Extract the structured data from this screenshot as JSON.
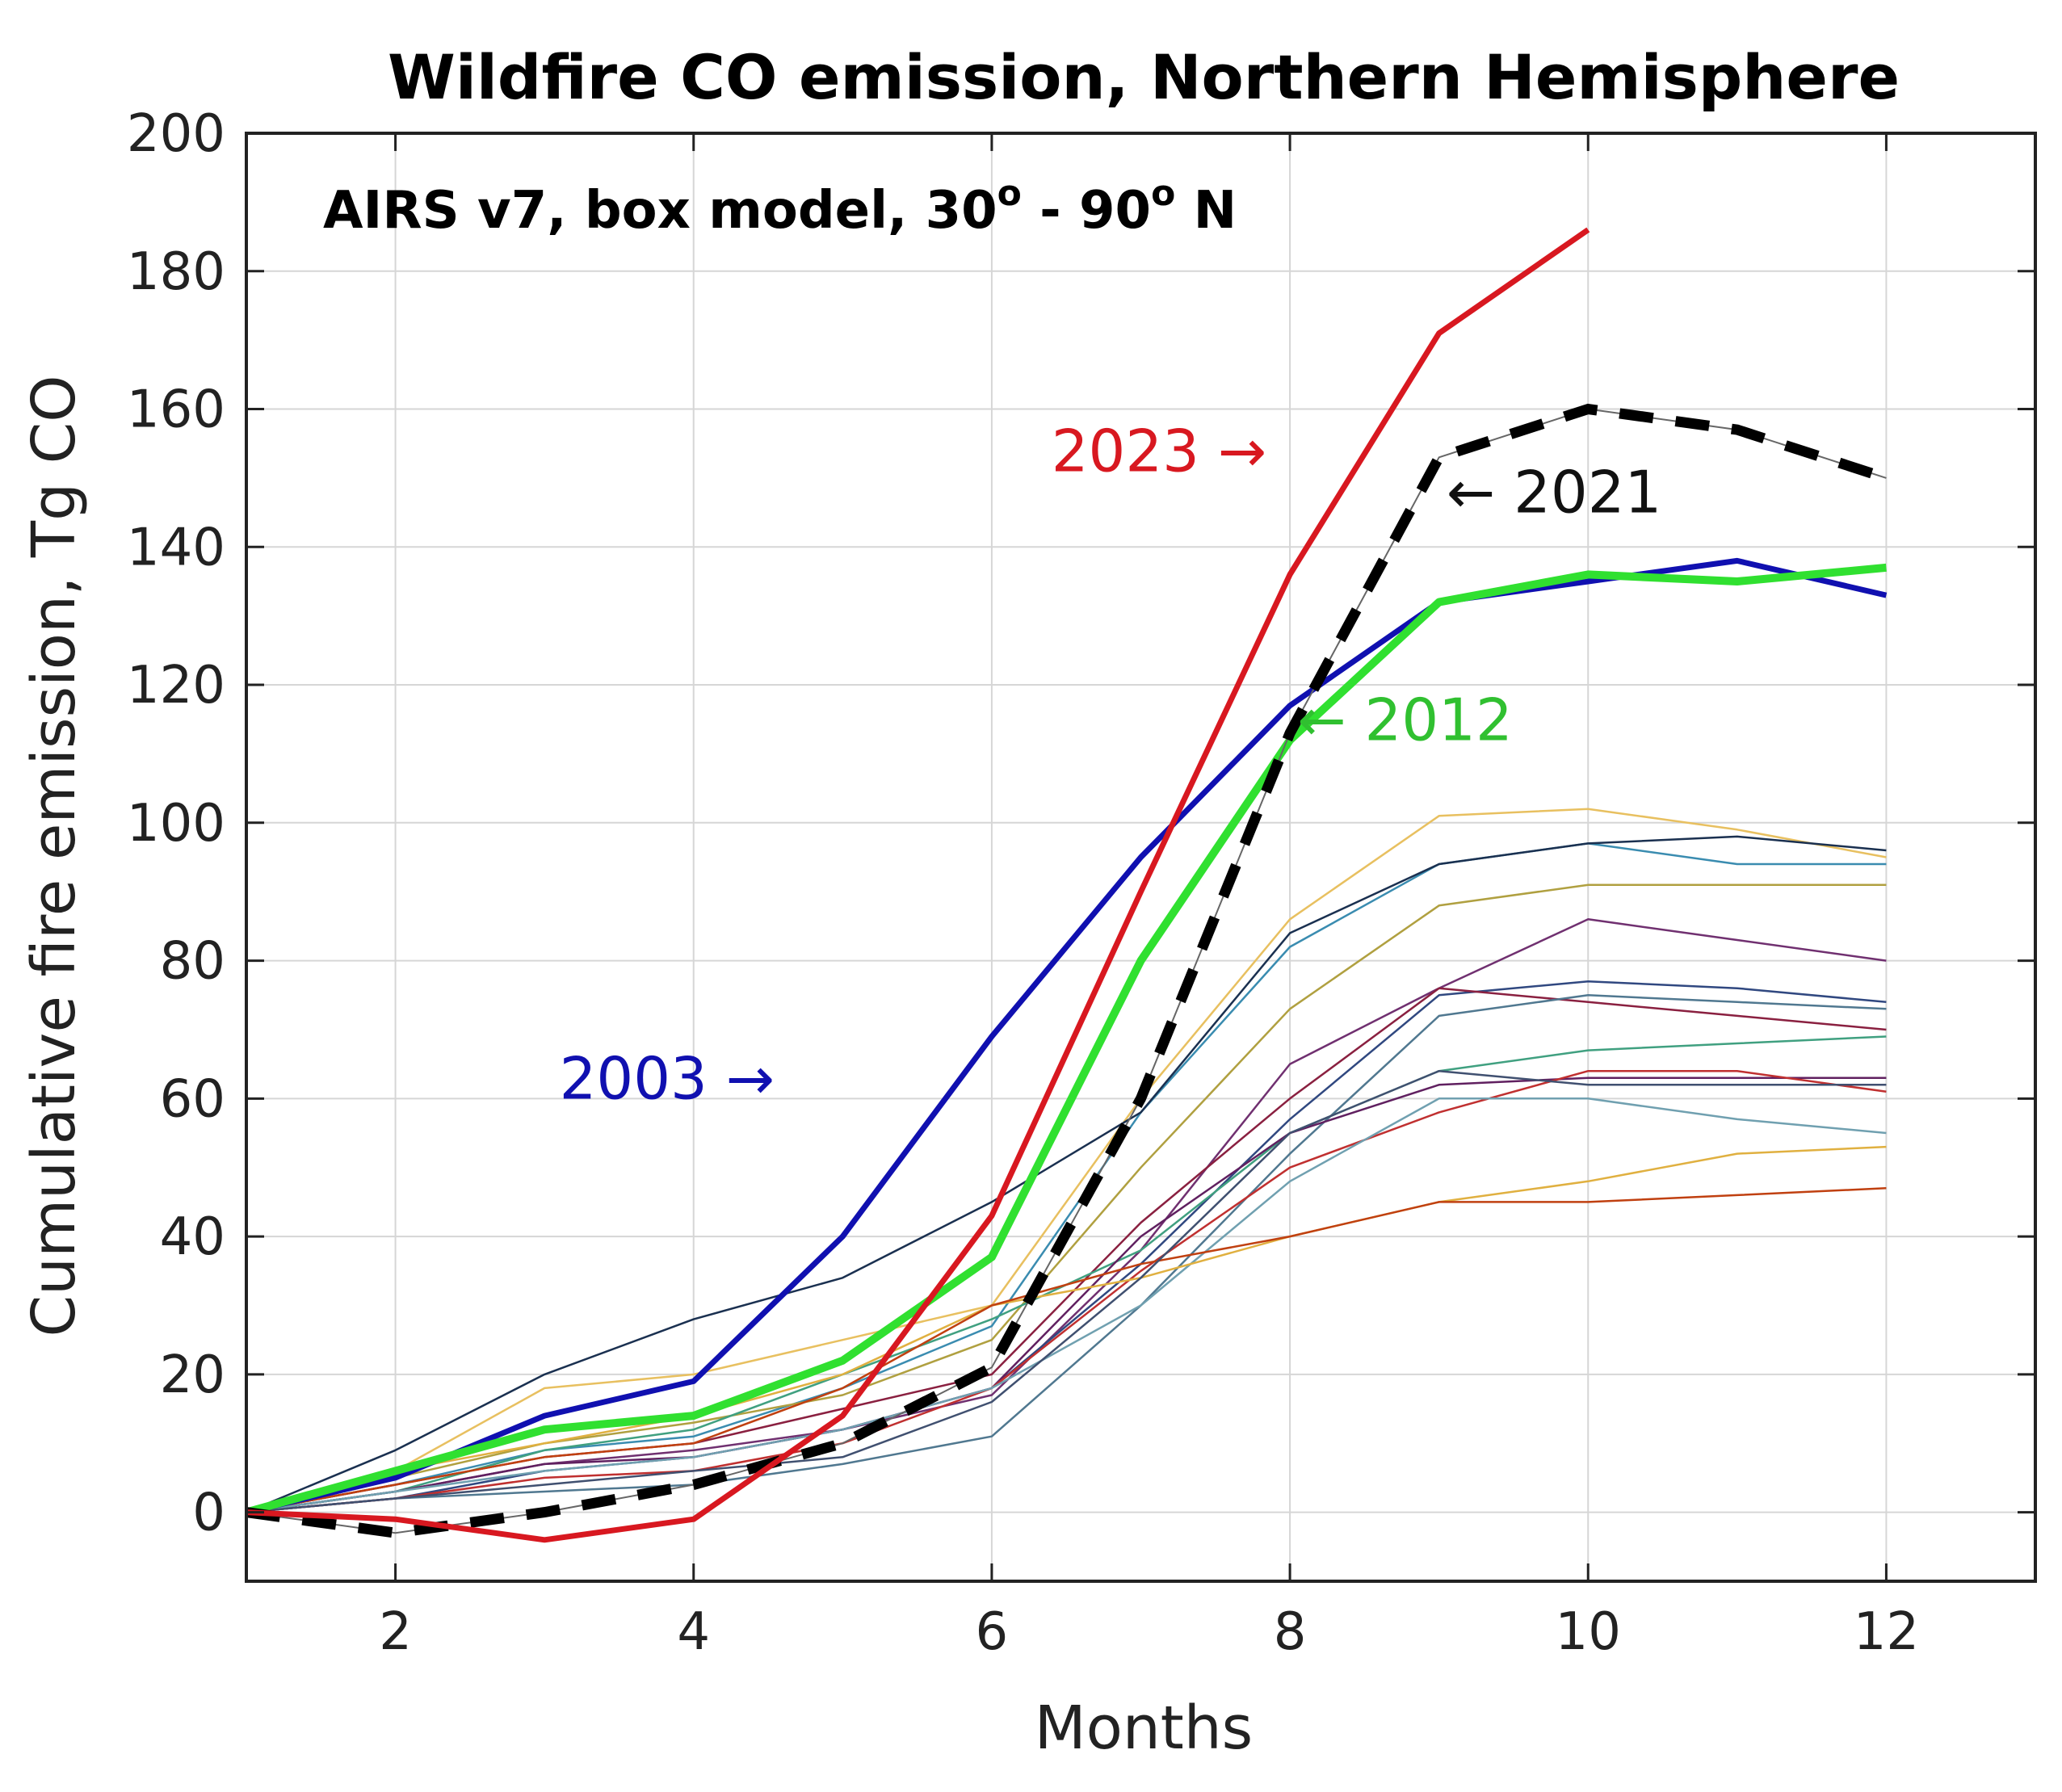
{
  "chart_data": {
    "type": "line",
    "title": "Wildfire CO emission, Northern Hemisphere",
    "subtitle": "AIRS v7, box model, 30",
    "subtitle_sup": "o",
    "subtitle_mid": " - 90",
    "subtitle_end": " N",
    "xlabel": "Months",
    "ylabel": "Cumulative fire emission, Tg CO",
    "xlim": [
      1,
      13
    ],
    "ylim": [
      -10,
      200
    ],
    "xticks": [
      2,
      4,
      6,
      8,
      10,
      12
    ],
    "yticks": [
      0,
      20,
      40,
      60,
      80,
      100,
      120,
      140,
      160,
      180,
      200
    ],
    "grid": true,
    "x": [
      1,
      2,
      3,
      4,
      5,
      6,
      7,
      8,
      9,
      10,
      11,
      12
    ],
    "highlighted_series": [
      {
        "name": "2003",
        "color": "#1010b0",
        "style": "solid",
        "values": [
          0,
          5,
          14,
          19,
          40,
          69,
          95,
          117,
          132,
          135,
          138,
          133
        ]
      },
      {
        "name": "2012",
        "color": "#30e030",
        "style": "solid",
        "values": [
          0,
          6,
          12,
          14,
          22,
          37,
          80,
          112,
          132,
          136,
          135,
          137
        ]
      },
      {
        "name": "2021",
        "color": "#000000",
        "style": "dashed",
        "values": [
          0,
          -3,
          0,
          4,
          10,
          21,
          60,
          113,
          153,
          160,
          157,
          150
        ]
      },
      {
        "name": "2023",
        "color": "#d81820",
        "style": "solid",
        "values": [
          0,
          -1,
          -4,
          -1,
          14,
          43,
          90,
          136,
          171,
          186,
          null,
          null
        ]
      }
    ],
    "background_series": [
      {
        "color": "#e8c060",
        "values": [
          0,
          6,
          18,
          20,
          25,
          30,
          60,
          86,
          101,
          102,
          99,
          95
        ]
      },
      {
        "color": "#3a8cb0",
        "values": [
          0,
          4,
          9,
          11,
          18,
          27,
          58,
          82,
          94,
          97,
          94,
          94
        ]
      },
      {
        "color": "#b0a040",
        "values": [
          0,
          5,
          10,
          13,
          17,
          25,
          50,
          73,
          88,
          91,
          91,
          91
        ]
      },
      {
        "color": "#703070",
        "values": [
          0,
          3,
          7,
          9,
          12,
          17,
          38,
          65,
          76,
          86,
          83,
          80
        ]
      },
      {
        "color": "#304880",
        "values": [
          0,
          2,
          6,
          8,
          12,
          18,
          36,
          57,
          75,
          77,
          76,
          74
        ]
      },
      {
        "color": "#8a2040",
        "values": [
          0,
          4,
          8,
          10,
          15,
          20,
          42,
          60,
          76,
          74,
          72,
          70
        ]
      },
      {
        "color": "#507890",
        "values": [
          0,
          2,
          3,
          4,
          7,
          11,
          30,
          52,
          72,
          75,
          74,
          73
        ]
      },
      {
        "color": "#40a080",
        "values": [
          0,
          3,
          9,
          12,
          20,
          28,
          38,
          55,
          64,
          67,
          68,
          69
        ]
      },
      {
        "color": "#602060",
        "values": [
          0,
          3,
          7,
          8,
          12,
          18,
          40,
          55,
          62,
          63,
          63,
          63
        ]
      },
      {
        "color": "#c03030",
        "values": [
          0,
          2,
          5,
          6,
          10,
          18,
          35,
          50,
          58,
          64,
          64,
          61
        ]
      },
      {
        "color": "#70a0b0",
        "values": [
          0,
          3,
          6,
          8,
          12,
          18,
          30,
          48,
          60,
          60,
          57,
          55
        ]
      },
      {
        "color": "#e0b040",
        "values": [
          0,
          6,
          10,
          14,
          20,
          30,
          34,
          40,
          45,
          48,
          52,
          53
        ]
      },
      {
        "color": "#c04010",
        "values": [
          0,
          4,
          8,
          10,
          18,
          30,
          36,
          40,
          45,
          45,
          46,
          47
        ]
      },
      {
        "color": "#1a3050",
        "values": [
          0,
          9,
          20,
          28,
          34,
          45,
          58,
          84,
          94,
          97,
          98,
          96
        ]
      },
      {
        "color": "#405070",
        "values": [
          0,
          2,
          4,
          6,
          8,
          16,
          34,
          55,
          64,
          62,
          62,
          62
        ]
      }
    ],
    "annotations": [
      {
        "series": "2023",
        "text": "2023 →",
        "color": "#d81820"
      },
      {
        "series": "2021",
        "text": "← 2021",
        "color": "#111111"
      },
      {
        "series": "2012",
        "text": "← 2012",
        "color": "#30c030"
      },
      {
        "series": "2003",
        "text": "2003 →",
        "color": "#1010b0"
      }
    ]
  }
}
